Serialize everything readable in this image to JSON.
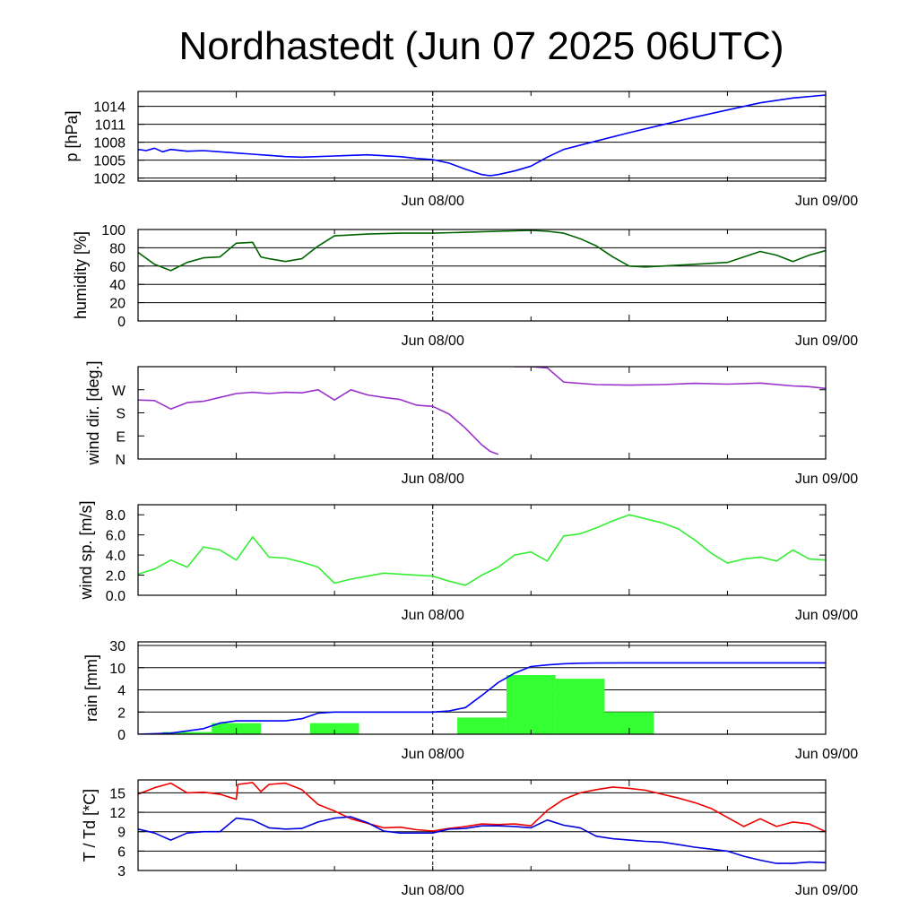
{
  "title": "Nordhastedt (Jun 07 2025 06UTC)",
  "x_tick_labels": [
    "Jun 08/00",
    "Jun 09/00"
  ],
  "chart_data": [
    {
      "type": "line",
      "id": "pressure",
      "ylabel": "p [hPa]",
      "ylim": [
        1001.5,
        1016.5
      ],
      "yticks": [
        1002,
        1005,
        1008,
        1011,
        1014
      ],
      "ytick_labels": [
        "1002",
        "1005",
        "1008",
        "1011",
        "1014"
      ],
      "xlim_hours": [
        0,
        42
      ],
      "grid": true,
      "series": [
        {
          "color": "#0000ff",
          "x": [
            0,
            0.5,
            1,
            1.5,
            2,
            3,
            4,
            5,
            6,
            7,
            8,
            9,
            10,
            12,
            14,
            16,
            17,
            18,
            19,
            20,
            21,
            21.5,
            22,
            23,
            24,
            25,
            26,
            28,
            30,
            32,
            34,
            36,
            38,
            40,
            42
          ],
          "y": [
            1006.8,
            1006.6,
            1007,
            1006.4,
            1006.8,
            1006.5,
            1006.6,
            1006.4,
            1006.2,
            1006,
            1005.8,
            1005.6,
            1005.5,
            1005.7,
            1005.9,
            1005.6,
            1005.3,
            1005.1,
            1004.5,
            1003.5,
            1002.6,
            1002.4,
            1002.6,
            1003.2,
            1004,
            1005.5,
            1006.8,
            1008.2,
            1009.6,
            1010.9,
            1012.2,
            1013.4,
            1014.6,
            1015.4,
            1015.9
          ]
        }
      ]
    },
    {
      "type": "line",
      "id": "humidity",
      "ylabel": "humidity [%]",
      "ylim": [
        0,
        100
      ],
      "yticks": [
        0,
        20,
        40,
        60,
        80,
        100
      ],
      "ytick_labels": [
        "0",
        "20",
        "40",
        "60",
        "80",
        "100"
      ],
      "xlim_hours": [
        0,
        42
      ],
      "grid": true,
      "series": [
        {
          "color": "#006400",
          "x": [
            0,
            1,
            2,
            3,
            4,
            5,
            6,
            7,
            7.5,
            8,
            9,
            10,
            11,
            12,
            13,
            14,
            16,
            18,
            20,
            22,
            24,
            25,
            26,
            27,
            28,
            29,
            30,
            31,
            32,
            34,
            36,
            37,
            38,
            39,
            40,
            41,
            42
          ],
          "y": [
            75,
            62,
            55,
            64,
            69,
            70,
            85,
            86,
            70,
            68,
            65,
            68,
            82,
            93,
            94,
            95,
            96,
            96,
            97,
            98,
            99,
            98,
            96,
            90,
            82,
            70,
            60,
            59,
            60,
            62,
            64,
            70,
            76,
            72,
            65,
            72,
            77
          ]
        }
      ]
    },
    {
      "type": "line",
      "id": "wind_direction",
      "ylabel": "wind dir. [deg.]",
      "ylim": [
        0,
        360
      ],
      "yticks": [
        0,
        90,
        180,
        270
      ],
      "ytick_labels": [
        "N",
        "E",
        "S",
        "W"
      ],
      "xlim_hours": [
        0,
        42
      ],
      "grid": false,
      "series": [
        {
          "color": "#9932cc",
          "x": [
            0,
            1,
            2,
            3,
            4,
            5,
            6,
            7,
            8,
            9,
            10,
            11,
            12,
            13,
            14,
            15,
            16,
            17,
            18,
            19,
            20,
            21,
            21.5,
            22,
            23,
            24,
            25,
            26,
            28,
            30,
            32,
            34,
            36,
            38,
            40,
            41,
            42
          ],
          "y": [
            230,
            228,
            195,
            220,
            225,
            240,
            255,
            260,
            255,
            260,
            258,
            270,
            230,
            270,
            250,
            240,
            232,
            210,
            205,
            175,
            120,
            55,
            30,
            18,
            360,
            360,
            355,
            300,
            290,
            288,
            290,
            295,
            292,
            296,
            285,
            282,
            275
          ]
        }
      ]
    },
    {
      "type": "line",
      "id": "wind_speed",
      "ylabel": "wind sp. [m/s]",
      "ylim": [
        0,
        9
      ],
      "yticks": [
        0,
        2,
        4,
        6,
        8
      ],
      "ytick_labels": [
        "0.0",
        "2.0",
        "4.0",
        "6.0",
        "8.0"
      ],
      "xlim_hours": [
        0,
        42
      ],
      "grid": false,
      "series": [
        {
          "color": "#33ee33",
          "x": [
            0,
            1,
            2,
            3,
            4,
            5,
            6,
            7,
            8,
            9,
            10,
            11,
            12,
            13,
            14,
            15,
            16,
            17,
            18,
            19,
            20,
            21,
            22,
            23,
            24,
            25,
            26,
            27,
            28,
            29,
            30,
            31,
            32,
            33,
            34,
            35,
            36,
            37,
            38,
            39,
            40,
            41,
            42
          ],
          "y": [
            2.1,
            2.6,
            3.5,
            2.8,
            4.8,
            4.5,
            3.5,
            5.8,
            3.8,
            3.7,
            3.3,
            2.8,
            1.2,
            1.6,
            1.9,
            2.2,
            2.1,
            2.0,
            1.9,
            1.4,
            1.0,
            2.0,
            2.8,
            4.0,
            4.3,
            3.4,
            5.9,
            6.1,
            6.7,
            7.4,
            8.0,
            7.6,
            7.2,
            6.6,
            5.5,
            4.2,
            3.2,
            3.6,
            3.8,
            3.4,
            4.5,
            3.6,
            3.5
          ]
        }
      ]
    },
    {
      "type": "bar+line",
      "id": "rain",
      "ylabel": "rain [mm]",
      "ylim": [
        0,
        30
      ],
      "yticks": [
        0,
        2,
        4,
        10,
        30
      ],
      "ytick_labels": [
        "0",
        "2",
        "4",
        "10",
        "30"
      ],
      "y_scale": "nonlinear: equal spacing between ticks 0, 2, 4, 10, 30",
      "xlim_hours": [
        0,
        42
      ],
      "grid": true,
      "bars": {
        "color": "#33ff33",
        "x_from": [
          1.5,
          4.5,
          10.5,
          19.5,
          22.5,
          25.5,
          28.5
        ],
        "x_to": [
          4.5,
          7.5,
          13.5,
          22.5,
          25.5,
          28.5,
          31.5
        ],
        "values": [
          0.2,
          1.0,
          1.0,
          1.5,
          8,
          7,
          2
        ]
      },
      "series": [
        {
          "color": "#0000ff",
          "x": [
            0,
            2,
            3,
            4,
            5,
            6,
            7,
            9,
            10,
            11,
            12,
            14,
            16,
            18,
            19,
            20,
            21,
            22,
            23,
            24,
            25,
            26,
            27,
            28,
            30,
            32,
            34,
            36,
            38,
            40,
            42
          ],
          "y": [
            0,
            0.1,
            0.3,
            0.5,
            1.0,
            1.2,
            1.2,
            1.2,
            1.4,
            1.9,
            2.0,
            2.0,
            2.0,
            2.0,
            2.1,
            2.4,
            3.5,
            6.0,
            8.5,
            11,
            12.5,
            13.5,
            14,
            14.2,
            14.3,
            14.3,
            14.3,
            14.3,
            14.3,
            14.3,
            14.3
          ]
        }
      ]
    },
    {
      "type": "line",
      "id": "temperature",
      "ylabel": "T / Td [*C]",
      "ylim": [
        3,
        17
      ],
      "yticks": [
        3,
        6,
        9,
        12,
        15
      ],
      "ytick_labels": [
        "3",
        "6",
        "9",
        "12",
        "15"
      ],
      "xlim_hours": [
        0,
        42
      ],
      "grid": true,
      "series": [
        {
          "color": "#ee0000",
          "x": [
            0,
            1,
            2,
            3,
            4,
            5,
            6,
            6.1,
            7,
            7.5,
            8,
            9,
            10,
            11,
            12,
            13,
            14,
            15,
            16,
            17,
            18,
            19,
            20,
            21,
            22,
            23,
            24,
            25,
            26,
            27,
            28,
            29,
            30,
            31,
            32,
            33,
            34,
            35,
            36,
            37,
            38,
            39,
            40,
            41,
            42
          ],
          "y": [
            14.8,
            15.8,
            16.5,
            15,
            15.1,
            14.8,
            14,
            16.3,
            16.6,
            15.2,
            16.3,
            16.5,
            15.5,
            13.2,
            12.2,
            11,
            10.3,
            9.6,
            9.7,
            9.3,
            9.1,
            9.5,
            9.8,
            10.2,
            10.1,
            10.2,
            9.9,
            12.3,
            14,
            15,
            15.5,
            15.9,
            15.7,
            15.4,
            14.8,
            14.2,
            13.5,
            12.6,
            11.2,
            9.8,
            11,
            9.8,
            10.5,
            10.2,
            9.0
          ]
        },
        {
          "color": "#0000dd",
          "x": [
            0,
            1,
            2,
            3,
            4,
            5,
            6,
            7,
            8,
            9,
            10,
            11,
            12,
            13,
            14,
            15,
            16,
            17,
            18,
            19,
            20,
            21,
            22,
            23,
            24,
            25,
            26,
            27,
            28,
            29,
            30,
            31,
            32,
            33,
            34,
            35,
            36,
            37,
            38,
            39,
            40,
            41,
            42
          ],
          "y": [
            9.4,
            8.8,
            7.7,
            8.8,
            9.0,
            9.0,
            11.1,
            10.8,
            9.6,
            9.4,
            9.5,
            10.5,
            11.1,
            11.3,
            10.4,
            9.1,
            8.8,
            8.8,
            8.8,
            9.4,
            9.5,
            9.9,
            9.9,
            9.8,
            9.6,
            10.8,
            10.0,
            9.6,
            8.3,
            7.9,
            7.7,
            7.5,
            7.4,
            7.0,
            6.6,
            6.3,
            6.0,
            5.2,
            4.6,
            4.1,
            4.1,
            4.3,
            4.2
          ]
        }
      ]
    }
  ]
}
